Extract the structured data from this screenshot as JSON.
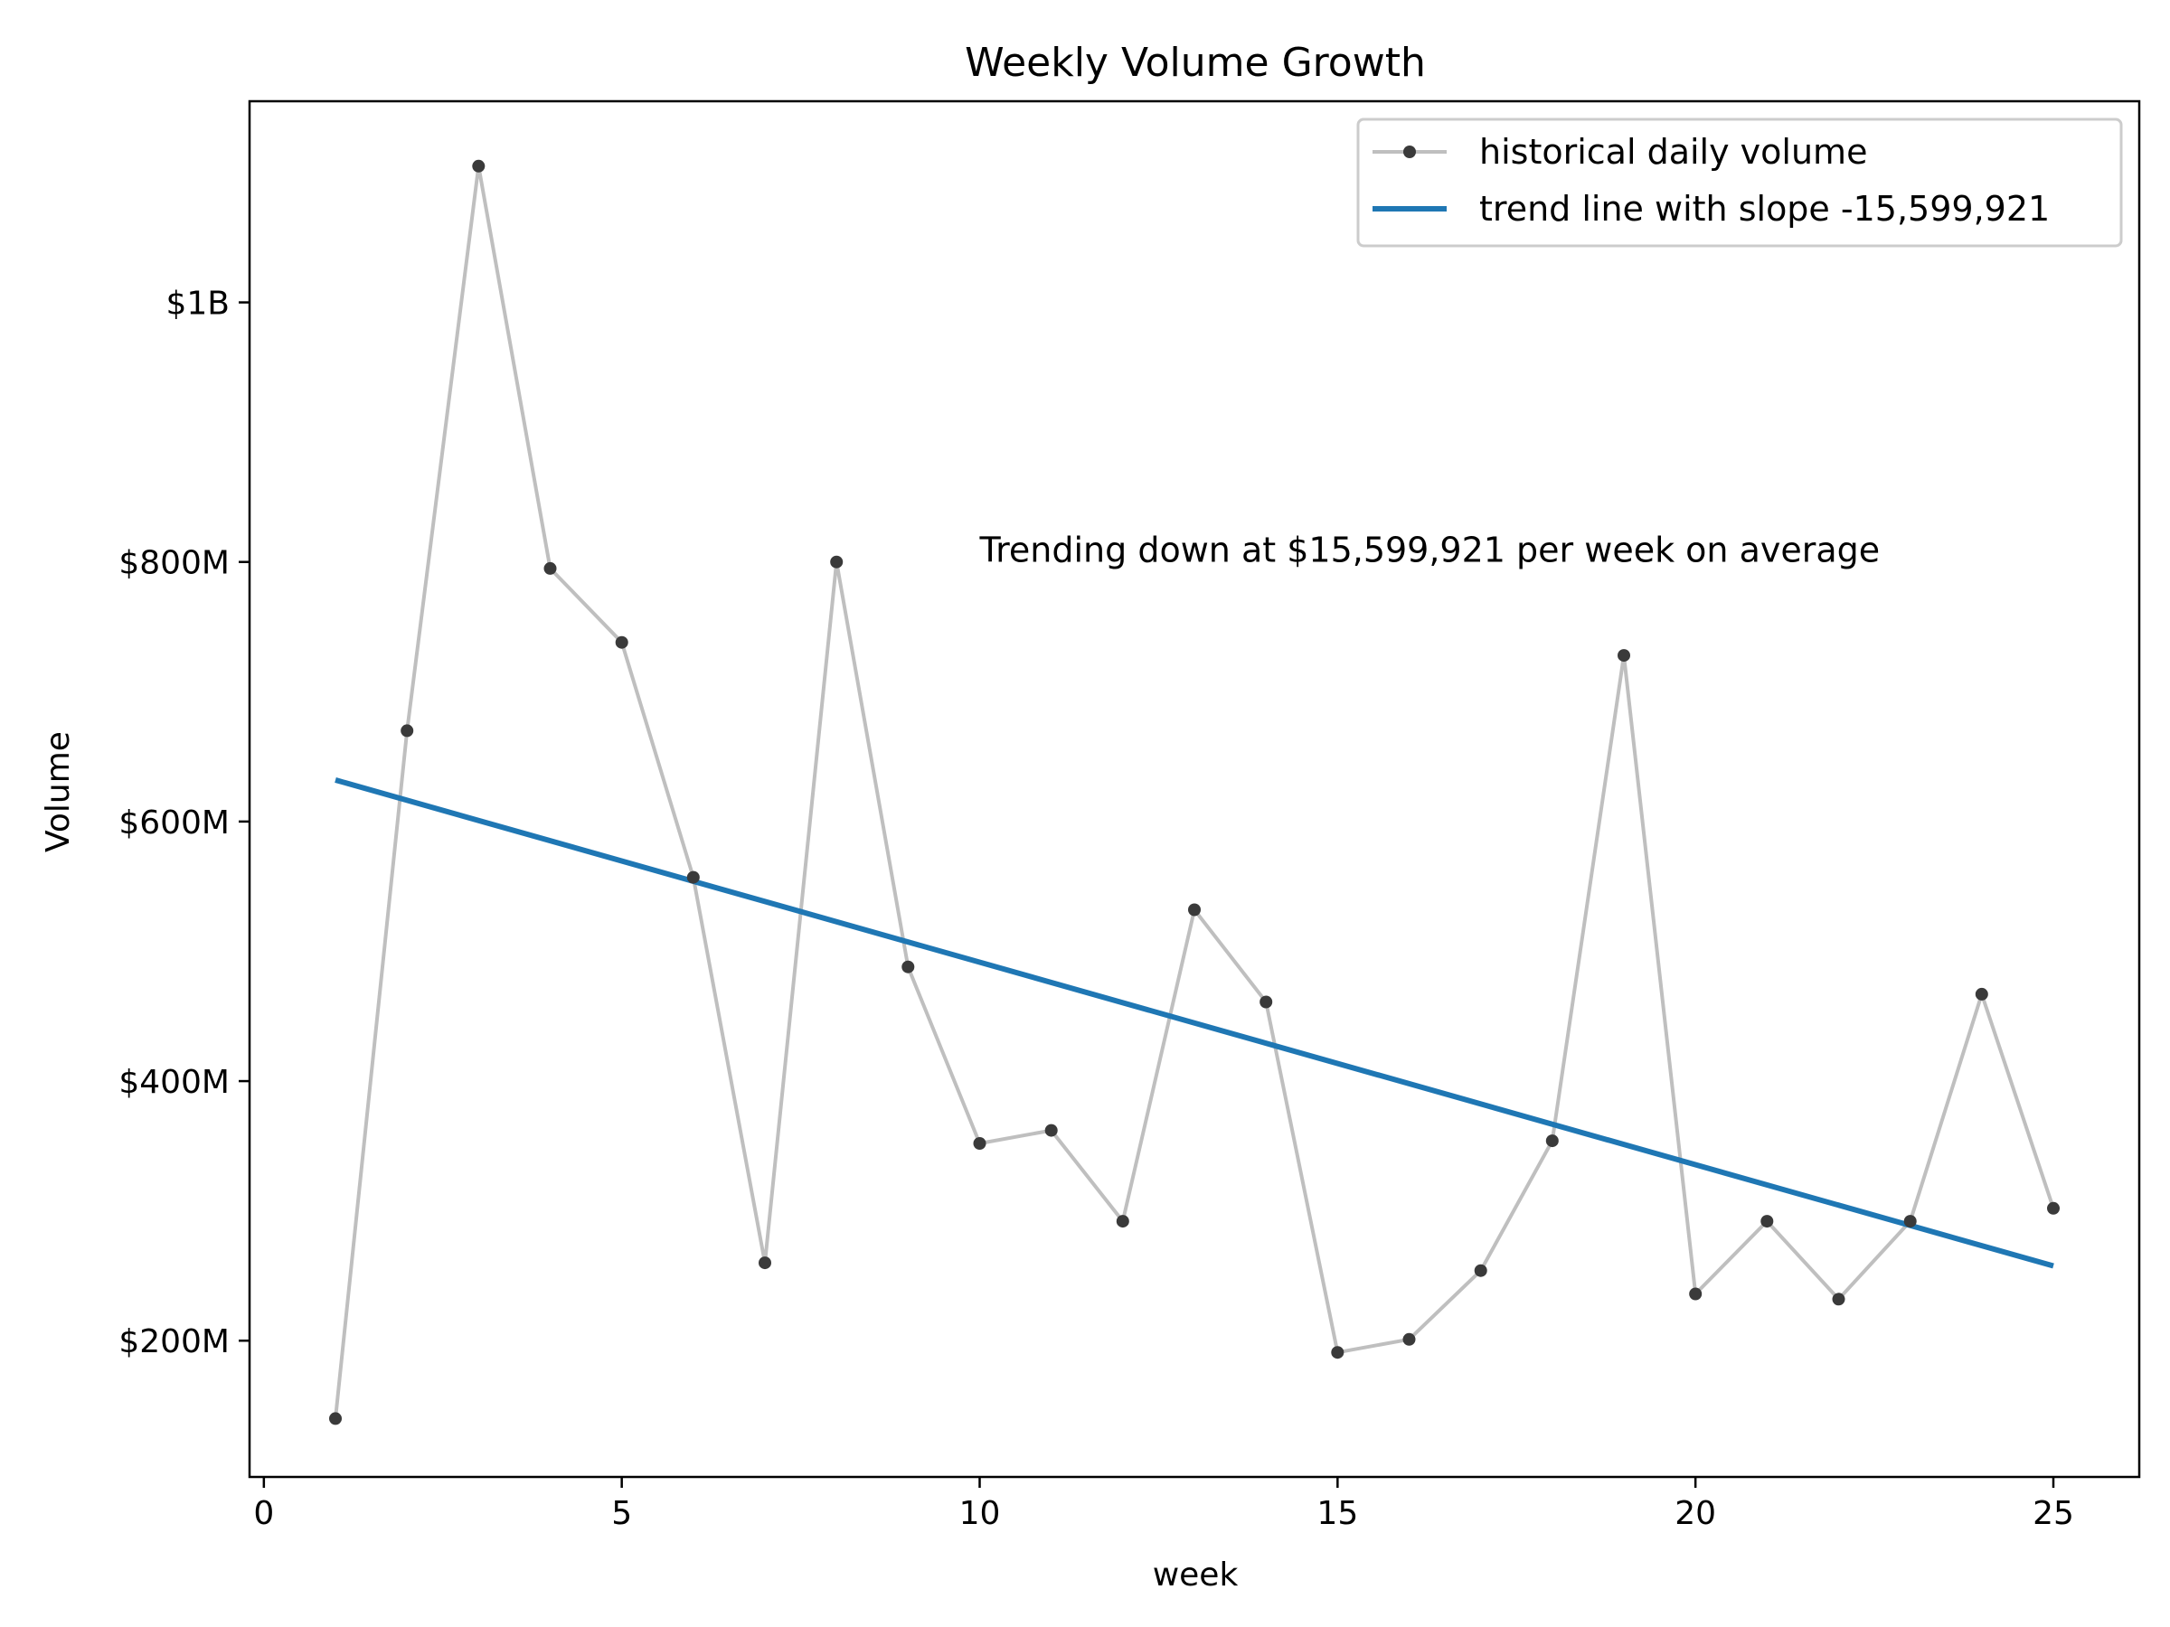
{
  "chart_data": {
    "type": "line",
    "title": "Weekly Volume Growth",
    "xlabel": "week",
    "ylabel": "Volume",
    "xlim": [
      -0.2,
      26.2
    ],
    "ylim": [
      95000000,
      1155000000
    ],
    "x_ticks": [
      0,
      5,
      10,
      15,
      20,
      25
    ],
    "x_tick_labels": [
      "0",
      "5",
      "10",
      "15",
      "20",
      "25"
    ],
    "y_ticks": [
      200000000,
      400000000,
      600000000,
      800000000,
      1000000000
    ],
    "y_tick_labels": [
      "$200M",
      "$400M",
      "$600M",
      "$800M",
      "$1B"
    ],
    "grid": false,
    "legend_position": "top-right",
    "series": [
      {
        "name": "historical daily volume",
        "kind": "line-with-markers",
        "line_color": "#bfbfbf",
        "marker_color": "#3a3a3a",
        "x": [
          1,
          2,
          3,
          4,
          5,
          6,
          7,
          8,
          9,
          10,
          11,
          12,
          13,
          14,
          15,
          16,
          17,
          18,
          19,
          20,
          21,
          22,
          23,
          24,
          25
        ],
        "y": [
          140000000,
          670000000,
          1105000000,
          795000000,
          738000000,
          557000000,
          260000000,
          800000000,
          488000000,
          352000000,
          362000000,
          292000000,
          532000000,
          461000000,
          191000000,
          201000000,
          254000000,
          354000000,
          728000000,
          236000000,
          292000000,
          232000000,
          292000000,
          467000000,
          302000000
        ]
      },
      {
        "name": "trend line with slope -15,599,921",
        "kind": "line",
        "line_color": "#1f77b4",
        "x": [
          1,
          25
        ],
        "y": [
          632000000,
          257600000
        ]
      }
    ],
    "annotation": {
      "text": "Trending down at $15,599,921 per week on average",
      "x": 10,
      "y": 800000000
    }
  }
}
